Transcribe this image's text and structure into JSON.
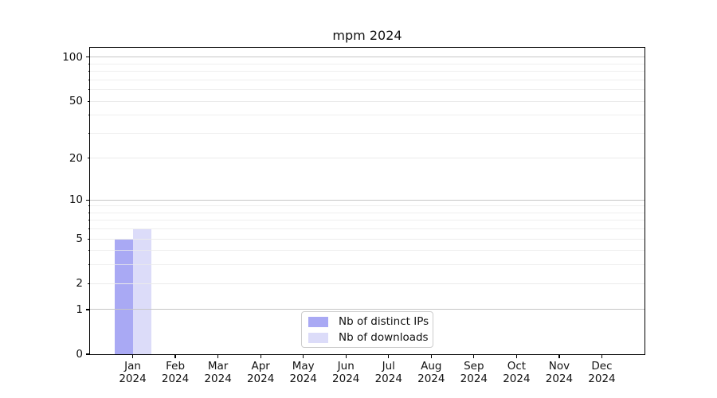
{
  "figure": {
    "background": "#ffffff"
  },
  "chart_data": {
    "type": "bar",
    "title": "mpm 2024",
    "categories": [
      "Jan",
      "Feb",
      "Mar",
      "Apr",
      "May",
      "Jun",
      "Jul",
      "Aug",
      "Sep",
      "Oct",
      "Nov",
      "Dec"
    ],
    "category_year": "2024",
    "series": [
      {
        "name": "Nb of distinct IPs",
        "color": "#a9a9f4",
        "values": [
          5,
          0,
          0,
          0,
          0,
          0,
          0,
          0,
          0,
          0,
          0,
          0
        ]
      },
      {
        "name": "Nb of downloads",
        "color": "#dcdcf9",
        "values": [
          6,
          0,
          0,
          0,
          0,
          0,
          0,
          0,
          0,
          0,
          0,
          0
        ]
      }
    ],
    "y_scale": "log1p",
    "ylim": [
      0,
      116
    ],
    "y_ticks_major": [
      {
        "value": 100,
        "label": "100"
      },
      {
        "value": 10,
        "label": "10"
      },
      {
        "value": 1,
        "label": "1"
      },
      {
        "value": 0,
        "label": "0"
      }
    ],
    "y_ticks_minor_labeled": [
      {
        "value": 50,
        "label": "50"
      },
      {
        "value": 20,
        "label": "20"
      },
      {
        "value": 5,
        "label": "5"
      },
      {
        "value": 2,
        "label": "2"
      }
    ],
    "y_ticks_minor_unlabeled": [
      90,
      80,
      70,
      60,
      40,
      30,
      9,
      8,
      7,
      6,
      4,
      3
    ],
    "grid": {
      "on": true,
      "major_color": "#c6c6c6",
      "minor_color": "#ebebeb"
    },
    "axis_color": "#000000",
    "text_color": "#111111",
    "legend": {
      "position": "lower-center"
    }
  }
}
